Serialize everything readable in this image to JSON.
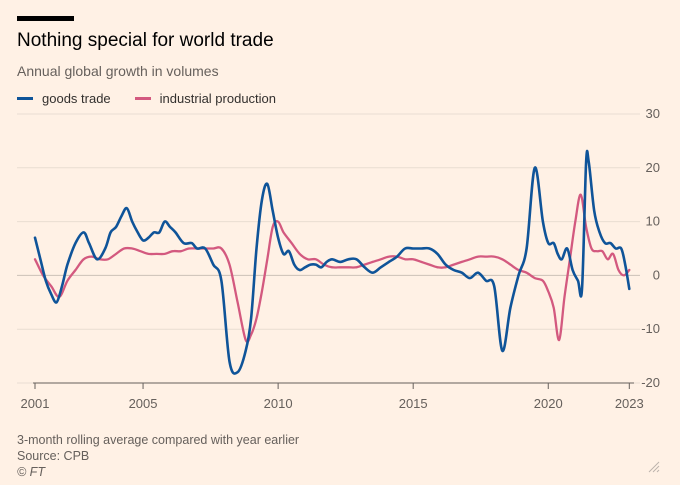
{
  "header": {
    "title": "Nothing special for world trade",
    "subtitle": "Annual global growth in volumes"
  },
  "legend": [
    {
      "label": "goods trade",
      "color": "#0f5499"
    },
    {
      "label": "industrial production",
      "color": "#d3597f"
    }
  ],
  "footer": {
    "note": "3-month rolling average compared with year earlier",
    "source": "Source: CPB",
    "copyright": "© FT"
  },
  "chart_data": {
    "type": "line",
    "title": "Nothing special for world trade",
    "subtitle": "Annual global growth in volumes",
    "xlabel": "",
    "ylabel": "",
    "xlim": [
      2001,
      2023.1
    ],
    "ylim": [
      -20,
      30
    ],
    "y_ticks": [
      -20,
      -10,
      0,
      10,
      20,
      30
    ],
    "y_tick_labels": [
      "-20",
      "-10",
      "0",
      "10",
      "20",
      "30"
    ],
    "x_ticks": [
      2001,
      2005,
      2010,
      2015,
      2020,
      2023
    ],
    "x_tick_labels": [
      "2001",
      "2005",
      "2010",
      "2015",
      "2020",
      "2023"
    ],
    "grid": true,
    "series": [
      {
        "name": "goods trade",
        "color": "#0f5499",
        "x": [
          2001.0,
          2001.2,
          2001.4,
          2001.6,
          2001.8,
          2002.0,
          2002.2,
          2002.5,
          2002.8,
          2003.0,
          2003.3,
          2003.6,
          2003.8,
          2004.0,
          2004.2,
          2004.4,
          2004.6,
          2004.8,
          2005.0,
          2005.2,
          2005.4,
          2005.6,
          2005.8,
          2006.0,
          2006.2,
          2006.5,
          2006.8,
          2007.0,
          2007.3,
          2007.6,
          2007.9,
          2008.2,
          2008.5,
          2008.8,
          2009.0,
          2009.2,
          2009.4,
          2009.6,
          2009.8,
          2010.0,
          2010.2,
          2010.4,
          2010.6,
          2010.8,
          2011.0,
          2011.2,
          2011.4,
          2011.6,
          2011.8,
          2012.0,
          2012.3,
          2012.6,
          2012.9,
          2013.2,
          2013.5,
          2013.8,
          2014.1,
          2014.4,
          2014.7,
          2015.0,
          2015.3,
          2015.6,
          2015.9,
          2016.2,
          2016.5,
          2016.8,
          2017.1,
          2017.4,
          2017.7,
          2018.0,
          2018.3,
          2018.6,
          2018.9,
          2019.2,
          2019.5,
          2019.8,
          2020.0,
          2020.2,
          2020.35,
          2020.5,
          2020.7,
          2020.9,
          2021.1,
          2021.25,
          2021.4,
          2021.5,
          2021.7,
          2021.9,
          2022.1,
          2022.3,
          2022.5,
          2022.7,
          2022.85,
          2023.0
        ],
        "values": [
          7,
          3,
          -1,
          -3.5,
          -5,
          -2,
          2,
          6,
          8,
          6,
          3,
          5,
          8,
          9,
          11,
          12.5,
          10,
          8,
          6.5,
          7,
          8,
          8,
          10,
          9,
          8,
          6,
          6,
          5,
          5,
          2,
          -1,
          -16,
          -18,
          -14,
          -8,
          5,
          14,
          17,
          12,
          7,
          4,
          4.5,
          2,
          1,
          1.5,
          2,
          2,
          1.5,
          2.5,
          3,
          2.5,
          3,
          3,
          1.5,
          0.5,
          1.5,
          2.5,
          3.5,
          5,
          5,
          5,
          5,
          4,
          2,
          1,
          0.5,
          -0.5,
          0.5,
          -1,
          -2,
          -14,
          -6,
          0,
          5,
          20,
          10,
          6,
          6,
          4,
          3,
          5,
          1,
          -1,
          -2.5,
          21,
          21,
          12,
          8,
          6,
          6,
          5,
          5,
          2,
          -2.5
        ]
      },
      {
        "name": "industrial production",
        "color": "#d3597f",
        "x": [
          2001.0,
          2001.3,
          2001.6,
          2001.9,
          2002.2,
          2002.5,
          2002.8,
          2003.1,
          2003.4,
          2003.7,
          2004.0,
          2004.3,
          2004.6,
          2004.9,
          2005.2,
          2005.5,
          2005.8,
          2006.1,
          2006.4,
          2006.7,
          2007.0,
          2007.3,
          2007.6,
          2007.9,
          2008.2,
          2008.5,
          2008.8,
          2009.0,
          2009.2,
          2009.4,
          2009.6,
          2009.8,
          2010.0,
          2010.2,
          2010.5,
          2010.8,
          2011.1,
          2011.4,
          2011.7,
          2012.0,
          2012.3,
          2012.6,
          2012.9,
          2013.2,
          2013.5,
          2013.8,
          2014.1,
          2014.4,
          2014.7,
          2015.0,
          2015.3,
          2015.6,
          2015.9,
          2016.2,
          2016.5,
          2016.8,
          2017.1,
          2017.4,
          2017.7,
          2018.0,
          2018.3,
          2018.6,
          2018.9,
          2019.2,
          2019.5,
          2019.8,
          2020.0,
          2020.2,
          2020.4,
          2020.6,
          2020.8,
          2021.0,
          2021.2,
          2021.4,
          2021.6,
          2021.8,
          2022.0,
          2022.2,
          2022.4,
          2022.6,
          2022.8,
          2023.0
        ],
        "values": [
          3,
          0,
          -2,
          -4,
          -1,
          1,
          3,
          3.5,
          3,
          3,
          4,
          5,
          5,
          4.5,
          4,
          4,
          4,
          4.5,
          4.5,
          5,
          5,
          5,
          5,
          5,
          2,
          -5,
          -12,
          -11,
          -8,
          -3,
          3,
          9,
          10,
          8,
          6,
          4,
          3,
          3,
          2,
          1.5,
          1.5,
          1.5,
          1.5,
          2,
          2.5,
          3,
          3.5,
          3.5,
          3,
          3,
          2.5,
          2,
          1.5,
          1.5,
          2,
          2.5,
          3,
          3.5,
          3.5,
          3.5,
          3,
          2,
          1,
          0.5,
          -0.5,
          -1,
          -3,
          -6,
          -12,
          -4,
          3,
          10,
          15,
          9,
          5,
          4.5,
          4.5,
          3,
          4,
          1,
          0,
          1
        ]
      }
    ]
  }
}
